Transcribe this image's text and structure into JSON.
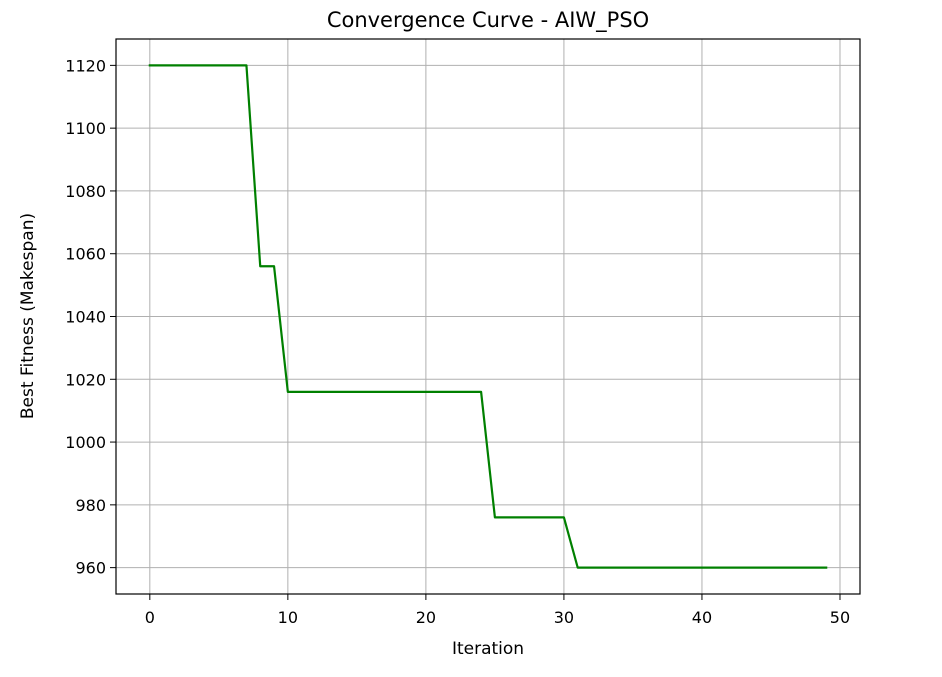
{
  "chart_data": {
    "type": "line",
    "title": "Convergence Curve - AIW_PSO",
    "xlabel": "Iteration",
    "ylabel": "Best Fitness (Makespan)",
    "xlim": [
      -2.45,
      51.45
    ],
    "ylim": [
      951.6,
      1128.4
    ],
    "xticks": [
      0,
      10,
      20,
      30,
      40,
      50
    ],
    "yticks": [
      960,
      980,
      1000,
      1020,
      1040,
      1060,
      1080,
      1100,
      1120
    ],
    "grid": true,
    "line_color": "#008000",
    "grid_color": "#b0b0b0",
    "series": [
      {
        "x": [
          0,
          1,
          2,
          3,
          4,
          5,
          6,
          7,
          8,
          9,
          10,
          11,
          12,
          13,
          14,
          15,
          16,
          17,
          18,
          19,
          20,
          21,
          22,
          23,
          24,
          25,
          26,
          27,
          28,
          29,
          30,
          31,
          32,
          33,
          34,
          35,
          36,
          37,
          38,
          39,
          40,
          41,
          42,
          43,
          44,
          45,
          46,
          47,
          48,
          49
        ],
        "values": [
          1120,
          1120,
          1120,
          1120,
          1120,
          1120,
          1120,
          1120,
          1056,
          1056,
          1016,
          1016,
          1016,
          1016,
          1016,
          1016,
          1016,
          1016,
          1016,
          1016,
          1016,
          1016,
          1016,
          1016,
          1016,
          976,
          976,
          976,
          976,
          976,
          976,
          960,
          960,
          960,
          960,
          960,
          960,
          960,
          960,
          960,
          960,
          960,
          960,
          960,
          960,
          960,
          960,
          960,
          960,
          960
        ]
      }
    ]
  }
}
